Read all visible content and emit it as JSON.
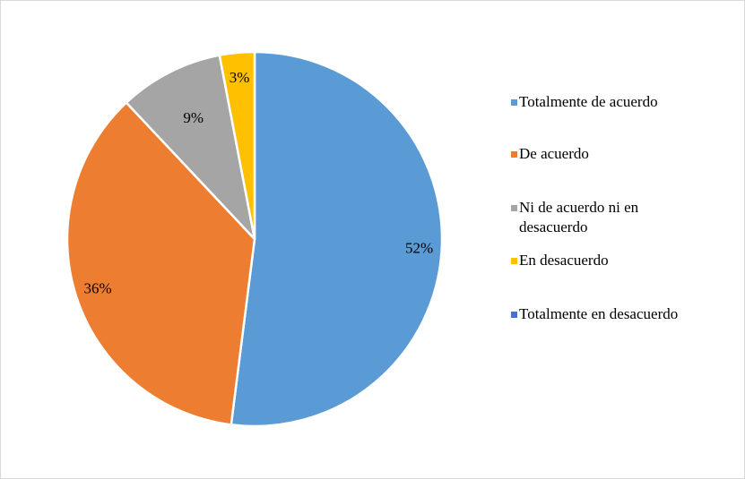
{
  "chart_data": {
    "type": "pie",
    "categories": [
      "Totalmente de acuerdo",
      "De acuerdo",
      "Ni de acuerdo ni en desacuerdo",
      "En desacuerdo",
      "Totalmente en desacuerdo"
    ],
    "values": [
      52,
      36,
      9,
      3,
      0
    ],
    "labels": [
      "52%",
      "36%",
      "9%",
      "3%",
      ""
    ],
    "colors": [
      "#5b9bd5",
      "#ed7d31",
      "#a5a5a5",
      "#ffc000",
      "#4472c4"
    ],
    "legend_position": "right",
    "legend": [
      [
        "Totalmente de acuerdo"
      ],
      [
        "De acuerdo"
      ],
      [
        "Ni de acuerdo ni en",
        "desacuerdo"
      ],
      [
        "En desacuerdo"
      ],
      [
        "Totalmente en desacuerdo"
      ]
    ],
    "title": ""
  }
}
